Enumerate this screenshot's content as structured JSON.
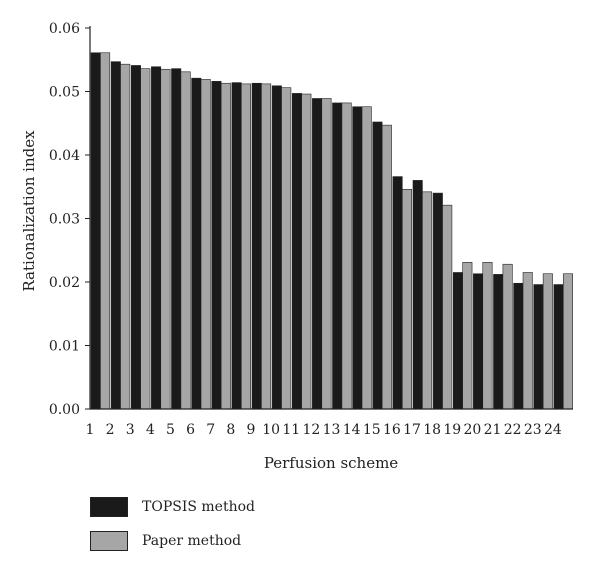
{
  "chart_data": {
    "type": "bar",
    "xlabel": "Perfusion scheme",
    "ylabel": "Rationalization index",
    "categories": [
      "1",
      "2",
      "3",
      "4",
      "5",
      "6",
      "7",
      "8",
      "9",
      "10",
      "11",
      "12",
      "13",
      "14",
      "15",
      "16",
      "17",
      "18",
      "19",
      "20",
      "21",
      "22",
      "23",
      "24"
    ],
    "ylim": [
      0,
      0.06
    ],
    "yticks": [
      "0.00",
      "0.01",
      "0.02",
      "0.03",
      "0.04",
      "0.05",
      "0.06"
    ],
    "legend_position": "bottom-left",
    "grid": false,
    "series": [
      {
        "name": "TOPSIS method",
        "color": "#1a1a1a",
        "values": [
          0.0561,
          0.0547,
          0.0541,
          0.0539,
          0.0536,
          0.0521,
          0.0516,
          0.0514,
          0.0513,
          0.0509,
          0.0497,
          0.0489,
          0.0482,
          0.0476,
          0.0452,
          0.0366,
          0.036,
          0.034,
          0.0215,
          0.0213,
          0.0212,
          0.0198,
          0.0196,
          0.0196
        ]
      },
      {
        "name": "Paper method",
        "color": "#a6a6a6",
        "values": [
          0.0561,
          0.0543,
          0.0536,
          0.0535,
          0.0531,
          0.0519,
          0.0513,
          0.0512,
          0.0512,
          0.0506,
          0.0496,
          0.0489,
          0.0482,
          0.0476,
          0.0447,
          0.0346,
          0.0342,
          0.0321,
          0.0231,
          0.0231,
          0.0228,
          0.0215,
          0.0213,
          0.0213
        ]
      }
    ]
  }
}
